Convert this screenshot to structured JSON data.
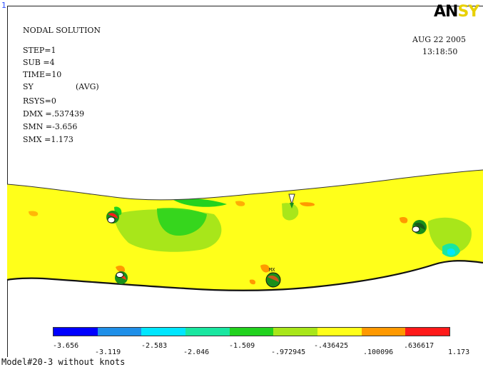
{
  "window": {
    "number": "1",
    "logo_main": "AN",
    "logo_tail": "SY"
  },
  "info": {
    "title": "NODAL SOLUTION",
    "step": "STEP=1",
    "sub": "SUB =4",
    "time": "TIME=10",
    "component": "SY",
    "avg": "(AVG)",
    "rsys": "RSYS=0",
    "dmx": "DMX =.537439",
    "smn": "SMN =-3.656",
    "smx": "SMX =1.173"
  },
  "datetime": {
    "date": "AUG 22 2005",
    "time": "13:18:50"
  },
  "markers": {
    "mx": "MX"
  },
  "legend": {
    "colors": [
      "#0000ff",
      "#1f8fe8",
      "#00e6ff",
      "#1ae6a0",
      "#22d21e",
      "#a8e61a",
      "#ffff1a",
      "#ff9900",
      "#ff1a1a"
    ],
    "upper_labels": [
      "-3.656",
      "-2.583",
      "-1.509",
      "-.436425",
      ".636617"
    ],
    "lower_labels": [
      "-3.119",
      "-2.046",
      "-.972945",
      ".100096",
      "1.173"
    ]
  },
  "footer": {
    "caption": "Model#20-3 without knots"
  }
}
